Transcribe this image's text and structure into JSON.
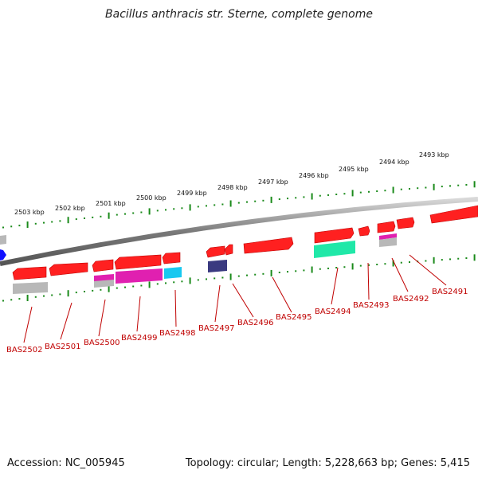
{
  "title": "Bacillus anthracis str. Sterne, complete genome",
  "footer": {
    "accession": "Accession: NC_005945",
    "stats": "Topology: circular; Length: 5,228,663 bp; Genes: 5,415"
  },
  "scale_labels": [
    "2503 kbp",
    "2502 kbp",
    "2501 kbp",
    "2500 kbp",
    "2499 kbp",
    "2498 kbp",
    "2497 kbp",
    "2496 kbp",
    "2495 kbp",
    "2494 kbp",
    "2493 kbp"
  ],
  "gene_labels": [
    "BAS2502",
    "BAS2501",
    "BAS2500",
    "BAS2499",
    "BAS2498",
    "BAS2497",
    "BAS2496",
    "BAS2495",
    "BAS2494",
    "BAS2493",
    "BAS2492",
    "BAS2491"
  ],
  "colors": {
    "cds": "#ff0000",
    "label": "#c00000",
    "tick": "#1a8a1a",
    "backbone": "#888888",
    "magenta": "#e020b0",
    "cyan": "#18c8f0",
    "teal": "#20e8a8",
    "navy": "#3a3a80",
    "gray": "#b8b8b8",
    "blue": "#1010ff"
  }
}
